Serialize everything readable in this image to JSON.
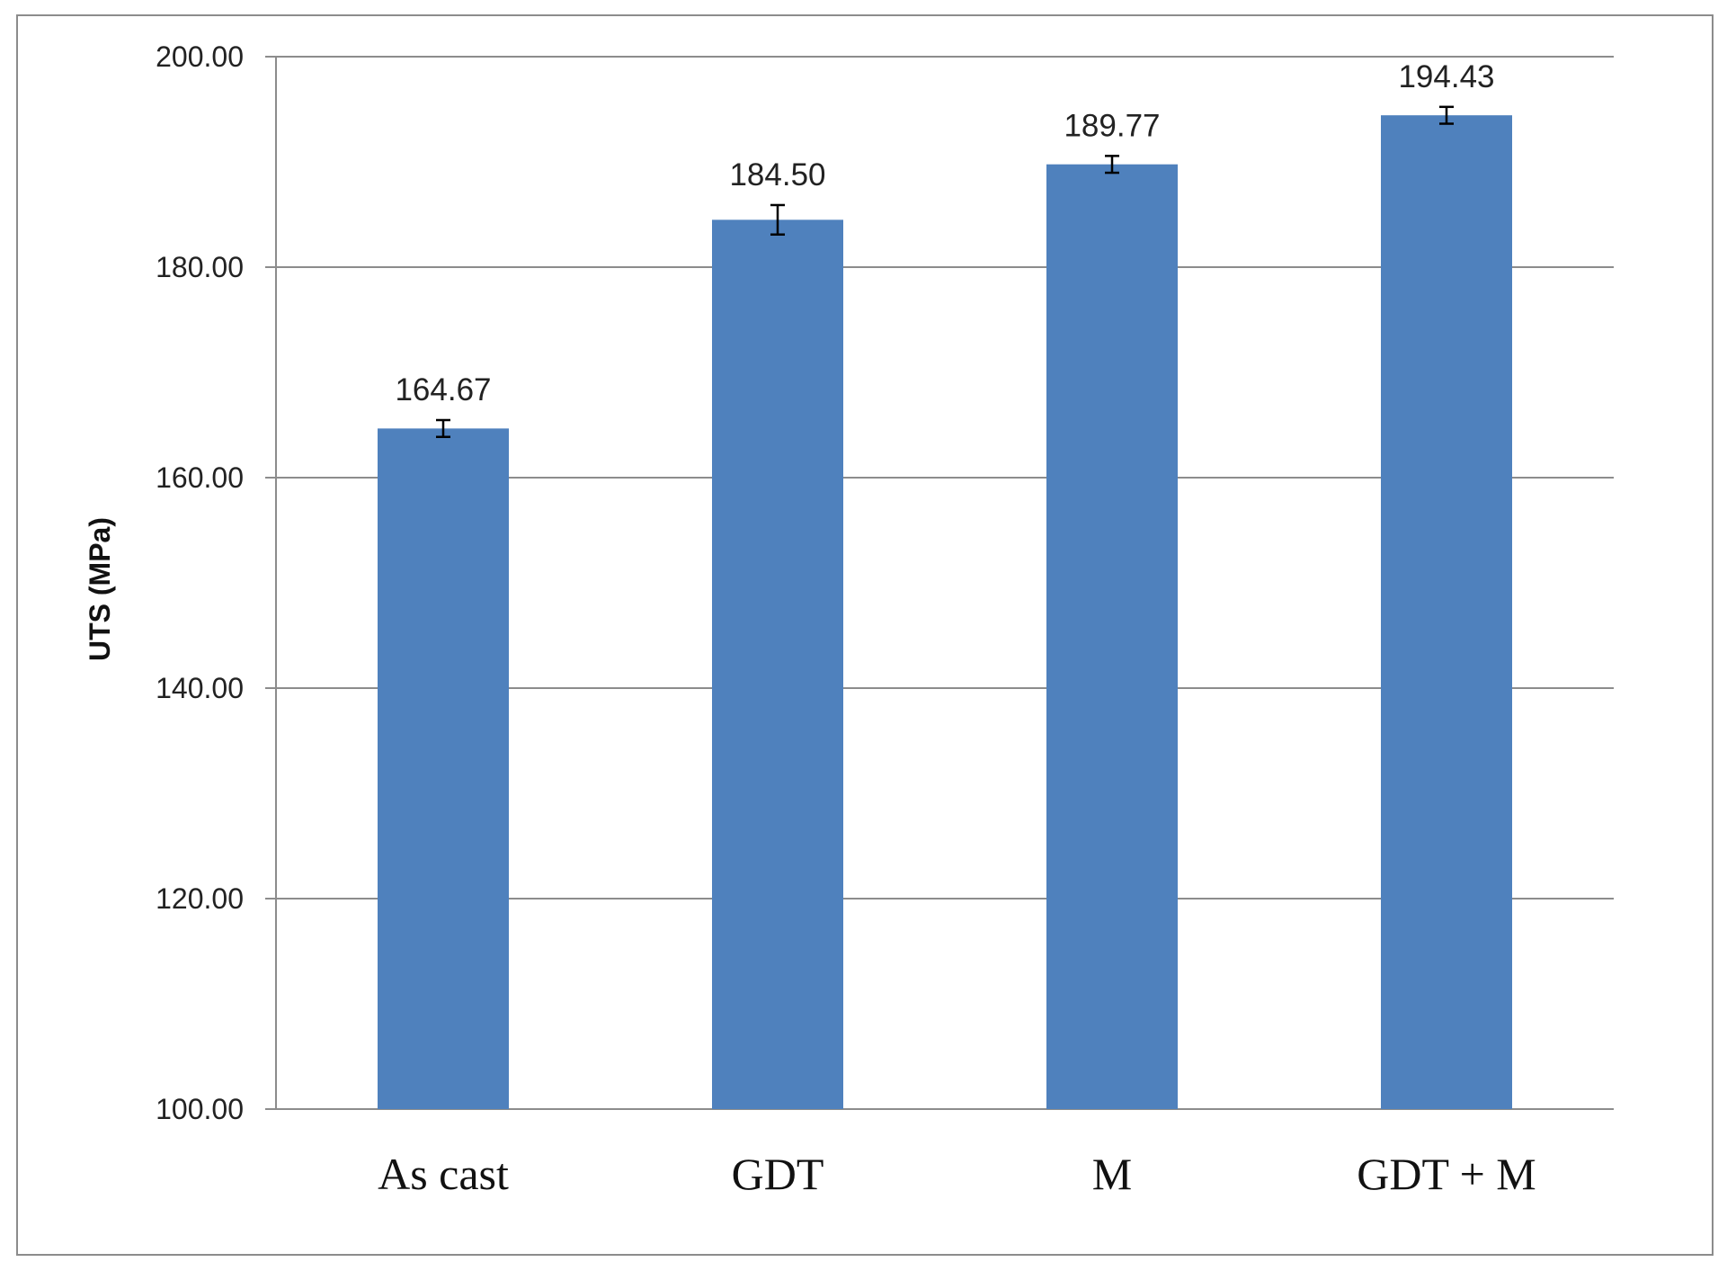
{
  "chart_data": {
    "type": "bar",
    "title": "",
    "xlabel": "",
    "ylabel": "UTS (MPa)",
    "categories": [
      "As cast",
      "GDT",
      "M",
      "GDT + M"
    ],
    "values": [
      164.67,
      184.5,
      189.77,
      194.43
    ],
    "value_labels": [
      "164.67",
      "184.50",
      "189.77",
      "194.43"
    ],
    "error_bars": [
      0.8,
      1.4,
      0.8,
      0.8
    ],
    "ylim": [
      100,
      200
    ],
    "yticks": [
      100,
      120,
      140,
      160,
      180,
      200
    ],
    "ytick_labels": [
      "100.00",
      "120.00",
      "140.00",
      "160.00",
      "180.00",
      "200.00"
    ],
    "grid": true,
    "legend": "none",
    "bar_color": "#4f81bd"
  }
}
